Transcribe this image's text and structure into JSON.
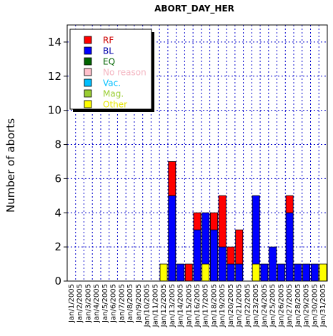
{
  "chart_data": {
    "type": "bar",
    "stacked": true,
    "title": "ABORT_DAY_HER",
    "ylabel": "Number of aborts",
    "xlabel": "",
    "ylim": [
      0,
      15
    ],
    "yticks": [
      0,
      2,
      4,
      6,
      8,
      10,
      12,
      14
    ],
    "grid": true,
    "legend_position": "top-left",
    "categories": [
      "Jan/1/2005",
      "Jan/2/2005",
      "Jan/3/2005",
      "Jan/4/2005",
      "Jan/5/2005",
      "Jan/6/2005",
      "Jan/7/2005",
      "Jan/8/2005",
      "Jan/9/2005",
      "Jan/10/2005",
      "Jan/11/2005",
      "Jan/12/2005",
      "Jan/13/2005",
      "Jan/14/2005",
      "Jan/15/2005",
      "Jan/16/2005",
      "Jan/17/2005",
      "Jan/18/2005",
      "Jan/19/2005",
      "Jan/20/2005",
      "Jan/21/2005",
      "Jan/22/2005",
      "Jan/23/2005",
      "Jan/24/2005",
      "Jan/25/2005",
      "Jan/26/2005",
      "Jan/27/2005",
      "Jan/28/2005",
      "Jan/29/2005",
      "Jan/30/2005",
      "Jan/31/2005"
    ],
    "series": [
      {
        "name": "Other",
        "color": "#ffff00",
        "values": [
          0,
          0,
          0,
          0,
          0,
          0,
          0,
          0,
          0,
          0,
          0,
          1,
          0,
          0,
          0,
          0,
          1,
          0,
          0,
          0,
          0,
          0,
          1,
          0,
          0,
          0,
          0,
          0,
          0,
          0,
          1
        ]
      },
      {
        "name": "BL",
        "color": "#0000ff",
        "values": [
          0,
          0,
          0,
          0,
          0,
          0,
          0,
          0,
          0,
          0,
          0,
          0,
          5,
          1,
          0,
          3,
          3,
          3,
          2,
          1,
          1,
          0,
          4,
          1,
          2,
          1,
          4,
          1,
          1,
          1,
          0
        ]
      },
      {
        "name": "RF",
        "color": "#ff0000",
        "values": [
          0,
          0,
          0,
          0,
          0,
          0,
          0,
          0,
          0,
          0,
          0,
          0,
          2,
          0,
          1,
          1,
          0,
          1,
          3,
          1,
          2,
          0,
          0,
          0,
          0,
          0,
          1,
          0,
          0,
          0,
          0
        ]
      },
      {
        "name": "EQ",
        "color": "#006400",
        "values": [
          0,
          0,
          0,
          0,
          0,
          0,
          0,
          0,
          0,
          0,
          0,
          0,
          0,
          0,
          0,
          0,
          0,
          0,
          0,
          0,
          0,
          0,
          0,
          0,
          0,
          0,
          0,
          0,
          0,
          0,
          0
        ]
      },
      {
        "name": "No reason",
        "color": "#ffc0cb",
        "values": [
          0,
          0,
          0,
          0,
          0,
          0,
          0,
          0,
          0,
          0,
          0,
          0,
          0,
          0,
          0,
          0,
          0,
          0,
          0,
          0,
          0,
          0,
          0,
          0,
          0,
          0,
          0,
          0,
          0,
          0,
          0
        ]
      },
      {
        "name": "Vac.",
        "color": "#00bfff",
        "values": [
          0,
          0,
          0,
          0,
          0,
          0,
          0,
          0,
          0,
          0,
          0,
          0,
          0,
          0,
          0,
          0,
          0,
          0,
          0,
          0,
          0,
          0,
          0,
          0,
          0,
          0,
          0,
          0,
          0,
          0,
          0
        ]
      },
      {
        "name": "Mag.",
        "color": "#9acd32",
        "values": [
          0,
          0,
          0,
          0,
          0,
          0,
          0,
          0,
          0,
          0,
          0,
          0,
          0,
          0,
          0,
          0,
          0,
          0,
          0,
          0,
          0,
          0,
          0,
          0,
          0,
          0,
          0,
          0,
          0,
          0,
          0
        ]
      }
    ],
    "legend": [
      {
        "label": "RF",
        "color": "#ff0000",
        "text_color": "#cc0000"
      },
      {
        "label": "BL",
        "color": "#0000ff",
        "text_color": "#0000aa"
      },
      {
        "label": "EQ",
        "color": "#006400",
        "text_color": "#006400"
      },
      {
        "label": "No reason",
        "color": "#ffc0cb",
        "text_color": "#f4b6c2"
      },
      {
        "label": "Vac.",
        "color": "#00bfff",
        "text_color": "#00bfff"
      },
      {
        "label": "Mag.",
        "color": "#9acd32",
        "text_color": "#9acd32"
      },
      {
        "label": "Other",
        "color": "#ffff00",
        "text_color": "#e6e600"
      }
    ]
  }
}
